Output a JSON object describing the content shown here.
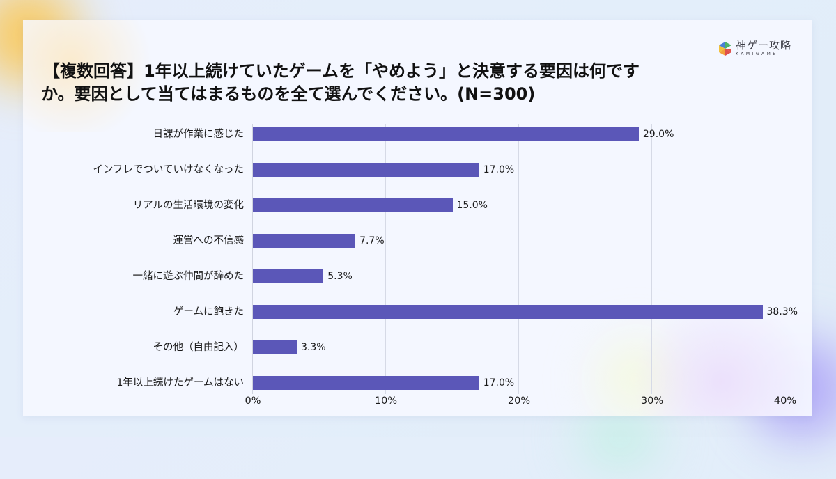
{
  "brand": {
    "name_jp": "神ゲー攻略",
    "name_en": "KAMIGAME",
    "icon": "hexagon-logo-icon",
    "icon_colors": [
      "#4a7fd6",
      "#4fb36a",
      "#f2c23a",
      "#e0504a"
    ]
  },
  "title": {
    "line1": "【複数回答】1年以上続けていたゲームを「やめよう」と決意する要因は何です",
    "line2": "か。要因として当てはまるものを全て選んでください。(N=300)"
  },
  "colors": {
    "bar": "#5b57b8",
    "card_bg": "#f5f7ff",
    "page_bg": "#e4edfa",
    "gridline": "#d6dae6"
  },
  "axis": {
    "ticks": [
      "0%",
      "10%",
      "20%",
      "30%",
      "40%"
    ]
  },
  "rows": [
    {
      "label": "日課が作業に感じた",
      "value_label": "29.0%"
    },
    {
      "label": "インフレでついていけなくなった",
      "value_label": "17.0%"
    },
    {
      "label": "リアルの生活環境の変化",
      "value_label": "15.0%"
    },
    {
      "label": "運営への不信感",
      "value_label": "7.7%"
    },
    {
      "label": "一緒に遊ぶ仲間が辞めた",
      "value_label": "5.3%"
    },
    {
      "label": "ゲームに飽きた",
      "value_label": "38.3%"
    },
    {
      "label": "その他（自由記入）",
      "value_label": "3.3%"
    },
    {
      "label": "1年以上続けたゲームはない",
      "value_label": "17.0%"
    }
  ],
  "chart_data": {
    "type": "bar",
    "orientation": "horizontal",
    "title": "【複数回答】1年以上続けていたゲームを「やめよう」と決意する要因は何ですか。要因として当てはまるものを全て選んでください。(N=300)",
    "categories": [
      "日課が作業に感じた",
      "インフレでついていけなくなった",
      "リアルの生活環境の変化",
      "運営への不信感",
      "一緒に遊ぶ仲間が辞めた",
      "ゲームに飽きた",
      "その他（自由記入）",
      "1年以上続けたゲームはない"
    ],
    "values": [
      29.0,
      17.0,
      15.0,
      7.7,
      5.3,
      38.3,
      3.3,
      17.0
    ],
    "value_labels": [
      "29.0%",
      "17.0%",
      "15.0%",
      "7.7%",
      "5.3%",
      "38.3%",
      "3.3%",
      "17.0%"
    ],
    "xlabel": "",
    "ylabel": "",
    "xlim": [
      0,
      40
    ],
    "x_ticks": [
      "0%",
      "10%",
      "20%",
      "30%",
      "40%"
    ],
    "grid": true,
    "legend": null,
    "sample_size": 300
  }
}
